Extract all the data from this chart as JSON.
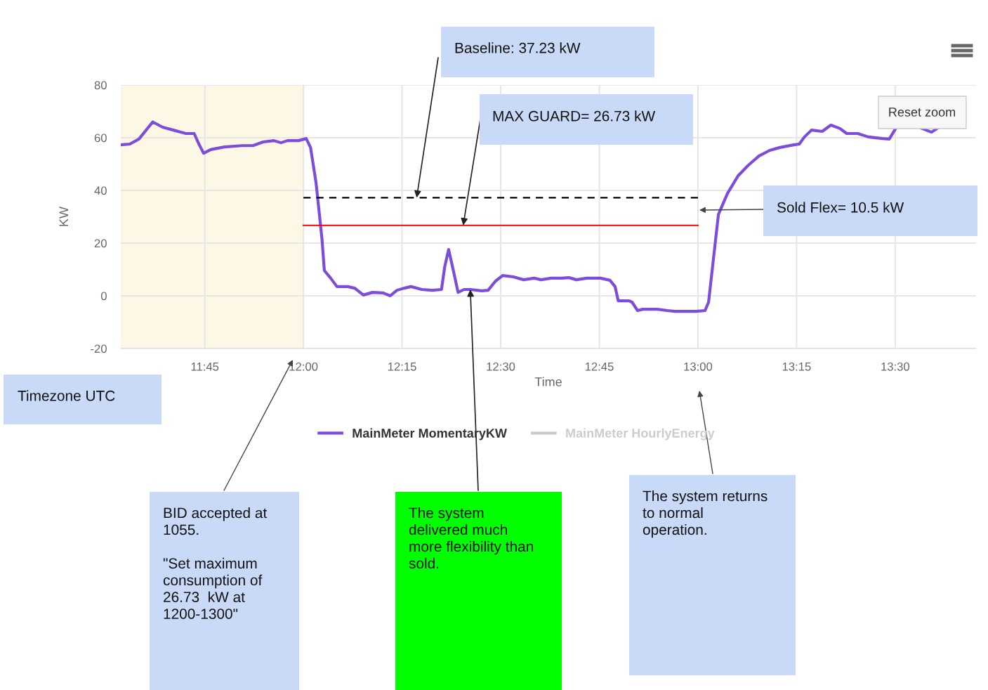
{
  "chart_data": {
    "type": "line",
    "xlabel": "Time",
    "ylabel": "KW",
    "xlim": [
      11.537,
      13.705
    ],
    "ylim": [
      -20,
      80
    ],
    "xticks": [
      {
        "value": 11.75,
        "label": "11:45"
      },
      {
        "value": 12,
        "label": "12:00"
      },
      {
        "value": 12.25,
        "label": "12:15"
      },
      {
        "value": 12.5,
        "label": "12:30"
      },
      {
        "value": 12.75,
        "label": "12:45"
      },
      {
        "value": 13,
        "label": "13:00"
      },
      {
        "value": 13.25,
        "label": "13:15"
      },
      {
        "value": 13.5,
        "label": "13:30"
      }
    ],
    "yticks": [
      -20,
      0,
      20,
      40,
      60,
      80
    ],
    "grid": true,
    "legend": "bottom",
    "bands": [
      {
        "axis": "x",
        "from": 11.537,
        "to": 12.0,
        "color": "#fdf8e6"
      }
    ],
    "series": [
      {
        "name": "MainMeter MomentaryKW",
        "color": "#7c4ddb",
        "x": [
          11.537,
          11.56,
          11.583,
          11.618,
          11.643,
          11.675,
          11.702,
          11.723,
          11.735,
          11.747,
          11.765,
          11.8,
          11.845,
          11.872,
          11.898,
          11.925,
          11.943,
          11.96,
          11.988,
          12.007,
          12.018,
          12.032,
          12.047,
          12.053,
          12.068,
          12.085,
          12.112,
          12.13,
          12.152,
          12.175,
          12.202,
          12.22,
          12.237,
          12.255,
          12.273,
          12.3,
          12.327,
          12.35,
          12.358,
          12.368,
          12.38,
          12.392,
          12.407,
          12.423,
          12.452,
          12.468,
          12.487,
          12.505,
          12.532,
          12.558,
          12.585,
          12.602,
          12.628,
          12.655,
          12.673,
          12.692,
          12.718,
          12.753,
          12.777,
          12.79,
          12.798,
          12.825,
          12.833,
          12.847,
          12.86,
          12.897,
          12.923,
          12.942,
          12.995,
          13.018,
          13.027,
          13.038,
          13.052,
          13.075,
          13.102,
          13.128,
          13.155,
          13.182,
          13.208,
          13.243,
          13.257,
          13.27,
          13.288,
          13.315,
          13.337,
          13.36,
          13.377,
          13.405,
          13.432,
          13.467,
          13.485,
          13.502,
          13.528,
          13.565,
          13.592,
          13.608
        ],
        "values": [
          57.3,
          57.6,
          59.5,
          66,
          64,
          62.7,
          61.6,
          61.6,
          57.6,
          54.1,
          55.5,
          56.5,
          57,
          57,
          58.4,
          58.9,
          58.1,
          58.9,
          58.9,
          59.7,
          56.3,
          42.9,
          21.6,
          9.6,
          6.9,
          3.5,
          3.5,
          2.9,
          0.3,
          1.3,
          1.1,
          0,
          2.1,
          2.9,
          3.5,
          2.4,
          2.1,
          2.4,
          10.9,
          17.6,
          9.6,
          1.3,
          2.4,
          2.4,
          1.9,
          2.1,
          5.6,
          7.7,
          7.2,
          6.1,
          6.7,
          6.1,
          6.7,
          6.7,
          6.9,
          6.1,
          6.7,
          6.7,
          5.9,
          3.5,
          -1.9,
          -1.9,
          -2.4,
          -5.6,
          -5.1,
          -5.1,
          -5.6,
          -5.9,
          -5.9,
          -5.6,
          -2.4,
          12.3,
          30.9,
          38.9,
          45.6,
          49.6,
          53.1,
          55.2,
          56.3,
          57.3,
          57.6,
          60.3,
          62.9,
          62.4,
          64.8,
          63.5,
          61.6,
          61.6,
          60.3,
          59.7,
          59.5,
          63.7,
          null,
          63.7,
          62.1,
          63.7
        ]
      },
      {
        "name": "MainMeter HourlyEnergy",
        "color": "#cccccc"
      },
      {
        "color": "#000000",
        "line_style": "dashed",
        "x": [
          12,
          13
        ],
        "values": [
          37.23,
          37.23
        ]
      },
      {
        "color": "#ff0000",
        "x": [
          12,
          13
        ],
        "values": [
          26.73,
          26.73
        ]
      }
    ],
    "annotations": [
      {
        "text": "Baseline: 37.23 kW",
        "x": 12.287,
        "y": 37.23
      },
      {
        "text": "MAX GUARD= 26.73 kW",
        "x": 12.405,
        "y": 26.73
      },
      "Sold Flex= 10.5 kW",
      "Timezone UTC",
      "BID accepted at\n1055.\n\n\"Set maximum\nconsumption of\n26.73  kW at\n1200-1300\"",
      {
        "text": "The system\ndelivered much\nmore flexibility than\nsold.",
        "x": 12.423,
        "y": 2.4
      },
      "The system returns\nto normal\noperation.",
      "Reset zoom"
    ]
  }
}
